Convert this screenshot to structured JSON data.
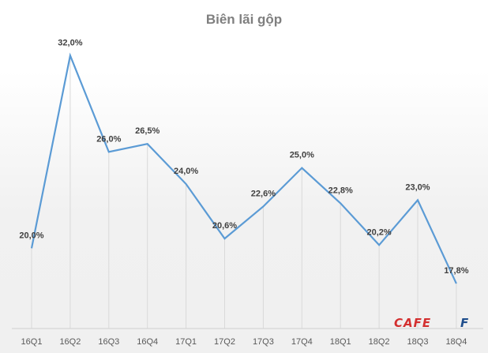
{
  "chart_data": {
    "type": "line",
    "title": "Biên lãi gộp",
    "categories": [
      "16Q1",
      "16Q2",
      "16Q3",
      "16Q4",
      "17Q1",
      "17Q2",
      "17Q3",
      "17Q4",
      "18Q1",
      "18Q2",
      "18Q3",
      "18Q4"
    ],
    "values": [
      20.0,
      32.0,
      26.0,
      26.5,
      24.0,
      20.6,
      22.6,
      25.0,
      22.8,
      20.2,
      23.0,
      17.8
    ],
    "data_labels": [
      "20,0%",
      "32,0%",
      "26,0%",
      "26,5%",
      "24,0%",
      "20,6%",
      "22,6%",
      "25,0%",
      "22,8%",
      "20,2%",
      "23,0%",
      "17,8%"
    ],
    "xlabel": "",
    "ylabel": "",
    "ylim": [
      15,
      35
    ],
    "grid": "vertical",
    "legend": "none",
    "line_color": "#5b9bd5"
  },
  "watermark": "CAFEF"
}
